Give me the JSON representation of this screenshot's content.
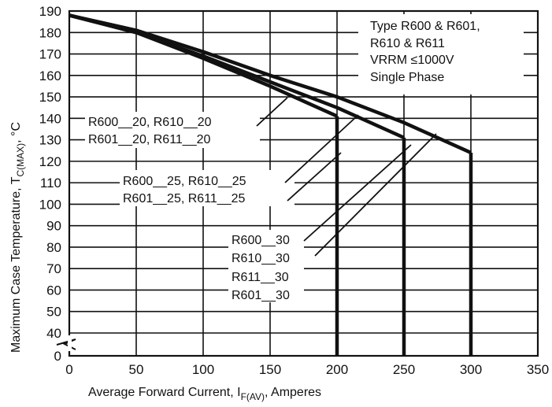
{
  "chart_data": {
    "type": "line",
    "xlabel_main": "Average Forward Current, I",
    "xlabel_sub": "F(AV)",
    "xlabel_tail": ", Amperes",
    "ylabel_main": "Maximum Case Temperature, T",
    "ylabel_sub": "C(MAX)",
    "ylabel_tail": ", °C",
    "x_ticks": [
      "0",
      "50",
      "100",
      "150",
      "200",
      "250",
      "300",
      "350"
    ],
    "y_ticks": [
      "0",
      "40",
      "50",
      "60",
      "70",
      "80",
      "90",
      "100",
      "110",
      "120",
      "130",
      "140",
      "150",
      "160",
      "170",
      "180",
      "190"
    ],
    "xlim": [
      0,
      350
    ],
    "ylim_broken": [
      0,
      40,
      190
    ],
    "grid": true,
    "info_box": [
      "Type R600 & R601,",
      "R610 & R611",
      "VRRM ≤1000V",
      "Single Phase"
    ],
    "series": [
      {
        "name": "R600_20, R610_20 / R601_20, R611_20",
        "points": [
          [
            0,
            188
          ],
          [
            50,
            180
          ],
          [
            100,
            168
          ],
          [
            150,
            155
          ],
          [
            200,
            141
          ]
        ],
        "drop_to": 0
      },
      {
        "name": "R600_25, R610_25 / R601_25, R611_25",
        "points": [
          [
            0,
            188
          ],
          [
            50,
            180
          ],
          [
            100,
            169
          ],
          [
            150,
            157
          ],
          [
            200,
            145
          ],
          [
            250,
            131
          ]
        ],
        "drop_to": 0
      },
      {
        "name": "R600_30, R610_30, R611_30, R601_30",
        "points": [
          [
            0,
            188
          ],
          [
            50,
            181
          ],
          [
            100,
            171
          ],
          [
            150,
            160
          ],
          [
            200,
            150
          ],
          [
            250,
            138
          ],
          [
            300,
            124
          ]
        ],
        "drop_to": 0
      }
    ],
    "labels": {
      "s20": [
        "R600__20, R610__20",
        "R601__20, R611__20"
      ],
      "s25": [
        "R600__25, R610__25",
        "R601__25, R611__25"
      ],
      "s30": [
        "R600__30",
        "R610__30",
        "R611__30",
        "R601__30"
      ]
    }
  }
}
